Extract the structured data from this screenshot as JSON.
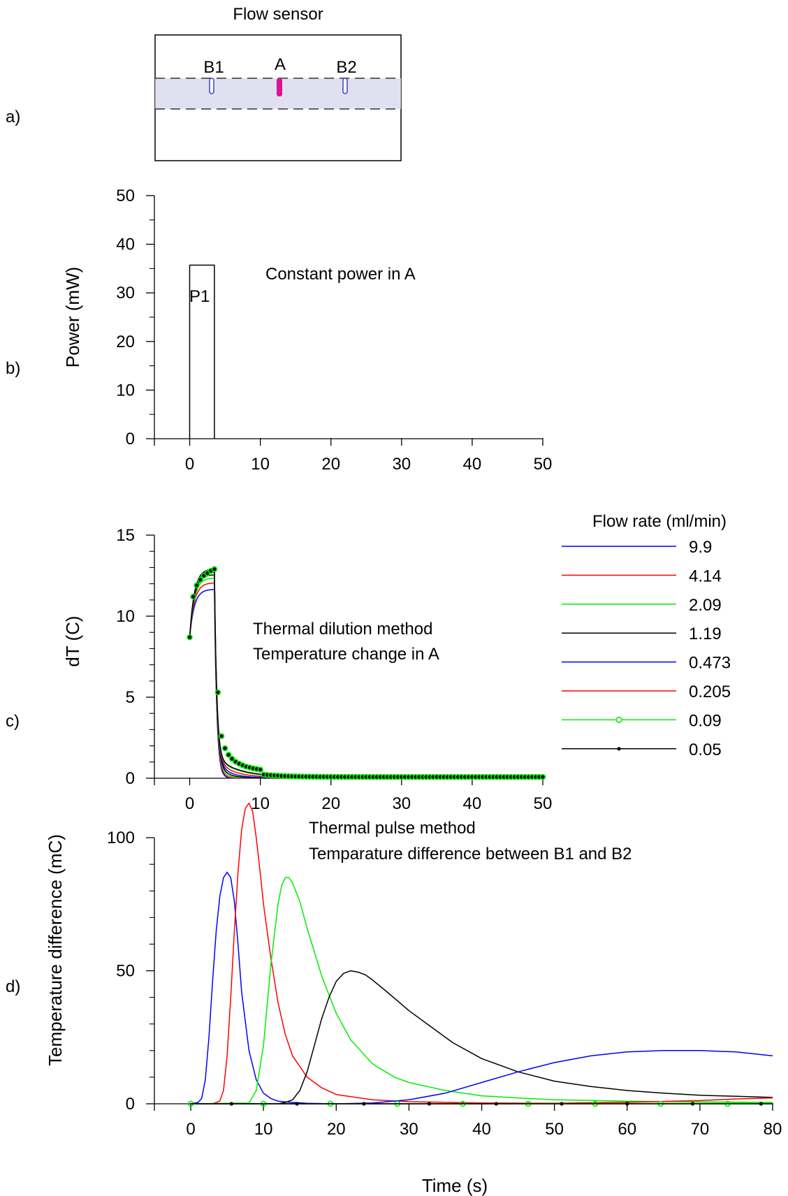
{
  "panel_labels": [
    "a)",
    "b)",
    "c)",
    "d)"
  ],
  "sensor": {
    "title": "Flow sensor",
    "labels": [
      "B1",
      "A",
      "B2"
    ],
    "colors": {
      "heater": "#e0109a",
      "probe": "#3344cc",
      "channel": "#d8d8ee"
    }
  },
  "legend": {
    "title": "Flow rate (ml/min)",
    "entries": [
      {
        "label": "9.9",
        "color": "#0000ff",
        "marker": "none"
      },
      {
        "label": "4.14",
        "color": "#ff0000",
        "marker": "none"
      },
      {
        "label": "2.09",
        "color": "#00ee00",
        "marker": "none"
      },
      {
        "label": "1.19",
        "color": "#000000",
        "marker": "none"
      },
      {
        "label": "0.473",
        "color": "#0000ff",
        "marker": "none"
      },
      {
        "label": "0.205",
        "color": "#ff0000",
        "marker": "none"
      },
      {
        "label": "0.09",
        "color": "#00ee00",
        "marker": "open-circle"
      },
      {
        "label": "0.05",
        "color": "#000000",
        "marker": "dot"
      }
    ]
  },
  "chart_data": [
    {
      "type": "line",
      "panel": "b",
      "ylabel": "Power (mW)",
      "xlim": [
        -5,
        50
      ],
      "ylim": [
        0,
        50
      ],
      "xticks": [
        0,
        10,
        20,
        30,
        40,
        50
      ],
      "yticks": [
        0,
        10,
        20,
        30,
        40,
        50
      ],
      "annotation": "Constant power in A",
      "pulse_label": "P1",
      "series": [
        {
          "x": [
            0,
            0,
            3.5,
            3.5
          ],
          "y": [
            0,
            35.7,
            35.7,
            0
          ],
          "color": "#000000"
        }
      ]
    },
    {
      "type": "line",
      "panel": "c",
      "ylabel": "dT (C)",
      "xlim": [
        -5,
        50
      ],
      "ylim": [
        0,
        15
      ],
      "xticks": [
        0,
        10,
        20,
        30,
        40,
        50
      ],
      "yticks": [
        0,
        5,
        10,
        15
      ],
      "annotation": [
        "Thermal dilution method",
        "Temperature change in A"
      ],
      "series": [
        {
          "name": "9.9",
          "color": "#0000ff",
          "peak": 11.65,
          "tau": 0.45,
          "floor": 0.0
        },
        {
          "name": "4.14",
          "color": "#ff0000",
          "peak": 12.05,
          "tau": 0.65,
          "floor": 0.0
        },
        {
          "name": "2.09",
          "color": "#00ee00",
          "peak": 12.35,
          "tau": 0.9,
          "floor": 0.01
        },
        {
          "name": "1.19",
          "color": "#000000",
          "peak": 12.55,
          "tau": 1.2,
          "floor": 0.02
        },
        {
          "name": "0.473",
          "color": "#0000ff",
          "peak": 12.7,
          "tau": 1.6,
          "floor": 0.03
        },
        {
          "name": "0.205",
          "color": "#ff0000",
          "peak": 12.8,
          "tau": 2.2,
          "floor": 0.05
        },
        {
          "name": "0.09",
          "color": "#00ee00",
          "peak": 12.85,
          "tau": 3.0,
          "floor": 0.07,
          "marker": "open-circle"
        },
        {
          "name": "0.05",
          "color": "#000000",
          "peak": 12.9,
          "tau": 3.2,
          "floor": 0.08,
          "marker": "dot"
        }
      ],
      "marked_points": {
        "x": [
          0,
          0.5,
          1,
          1.5,
          2,
          2.5,
          3,
          3.5,
          4,
          4.5,
          5,
          5.5,
          6,
          6.5,
          7,
          7.5,
          8,
          8.5,
          9,
          9.5,
          10
        ],
        "y": [
          8.7,
          11.2,
          11.9,
          12.25,
          12.5,
          12.65,
          12.8,
          12.9,
          5.3,
          2.6,
          1.85,
          1.45,
          1.2,
          1.02,
          0.9,
          0.8,
          0.72,
          0.66,
          0.61,
          0.57,
          0.53
        ]
      }
    },
    {
      "type": "line",
      "panel": "d",
      "xlabel": "Time (s)",
      "ylabel": "Temperature difference (mC)",
      "xlim": [
        -5,
        80
      ],
      "ylim": [
        0,
        115
      ],
      "xticks": [
        0,
        10,
        20,
        30,
        40,
        50,
        60,
        70,
        80
      ],
      "yticks": [
        0,
        50,
        100
      ],
      "annotation": [
        "Thermal pulse method",
        "Temparature difference between B1 and B2"
      ],
      "series": [
        {
          "name": "9.9",
          "color": "#0000ff",
          "x": [
            0,
            1,
            1.5,
            2,
            2.5,
            3,
            3.5,
            4,
            4.5,
            5,
            5.5,
            6,
            6.5,
            7,
            8,
            9,
            10,
            11,
            12,
            14,
            16,
            20
          ],
          "y": [
            0,
            0.5,
            2,
            9,
            25,
            46,
            65,
            78,
            85,
            87,
            85,
            76,
            60,
            42,
            20,
            9,
            4,
            2,
            1,
            0.5,
            0.2,
            0
          ]
        },
        {
          "name": "4.14",
          "color": "#ff0000",
          "x": [
            0,
            3,
            4,
            4.5,
            5,
            5.5,
            6,
            6.5,
            7,
            7.5,
            8,
            8.5,
            9,
            9.5,
            10,
            11,
            12,
            13,
            14,
            16,
            18,
            20,
            25,
            30,
            40,
            50,
            60,
            70,
            80
          ],
          "y": [
            0,
            0,
            1,
            5,
            18,
            40,
            65,
            87,
            103,
            111,
            113,
            110,
            100,
            88,
            75,
            55,
            38,
            26,
            18,
            10,
            6,
            3.5,
            1.5,
            0.8,
            0.3,
            0.2,
            0.1,
            0.1,
            0.1
          ]
        },
        {
          "name": "2.09",
          "color": "#00ee00",
          "x": [
            0,
            8,
            9,
            10,
            11,
            12,
            12.5,
            13,
            13.5,
            14,
            15,
            16,
            17,
            18,
            20,
            22,
            25,
            28,
            30,
            35,
            40,
            45,
            50,
            60,
            70,
            80
          ],
          "y": [
            0,
            0.3,
            5,
            22,
            52,
            75,
            82,
            85,
            85,
            83,
            76,
            66,
            57,
            48,
            34,
            24,
            15,
            10,
            8,
            5,
            3,
            2.2,
            1.5,
            1,
            0.7,
            0.5
          ]
        },
        {
          "name": "1.19",
          "color": "#000000",
          "x": [
            0,
            12,
            13,
            14,
            15,
            16,
            17,
            18,
            19,
            20,
            21,
            22,
            23,
            24,
            25,
            27,
            30,
            33,
            36,
            40,
            45,
            50,
            55,
            60,
            65,
            70,
            75,
            80
          ],
          "y": [
            0,
            0,
            0.5,
            1.5,
            5,
            12,
            22,
            32,
            40,
            46,
            49,
            50,
            49.5,
            48.5,
            46.5,
            42,
            35,
            29,
            23,
            17,
            12,
            8.5,
            6.5,
            5,
            4,
            3.2,
            2.8,
            2.4
          ]
        },
        {
          "name": "0.473",
          "color": "#0000ff",
          "x": [
            0,
            15,
            20,
            25,
            30,
            35,
            40,
            45,
            50,
            55,
            60,
            65,
            70,
            75,
            80
          ],
          "y": [
            0,
            0,
            0,
            0.3,
            1.5,
            4,
            8,
            12,
            15.5,
            18,
            19.5,
            20,
            20,
            19.5,
            18
          ]
        },
        {
          "name": "0.205",
          "color": "#ff0000",
          "x": [
            0,
            40,
            50,
            60,
            70,
            75,
            80
          ],
          "y": [
            0,
            0,
            0.2,
            0.6,
            1.2,
            1.8,
            2.2
          ]
        },
        {
          "name": "0.09",
          "color": "#00ee00",
          "x": [
            0,
            40,
            60,
            80
          ],
          "y": [
            0,
            0,
            0.1,
            0.2
          ],
          "marker": "open-circle",
          "marker_x": [
            0,
            10,
            19.2,
            28.4,
            37.4,
            46.4,
            55.6,
            64.6,
            73.8
          ]
        },
        {
          "name": "0.05",
          "color": "#000000",
          "x": [
            0,
            80
          ],
          "y": [
            0,
            0
          ],
          "marker": "dot",
          "marker_x": [
            5.6,
            14.6,
            23.8,
            32.8,
            42,
            51,
            60,
            69,
            78.4
          ]
        }
      ]
    }
  ]
}
